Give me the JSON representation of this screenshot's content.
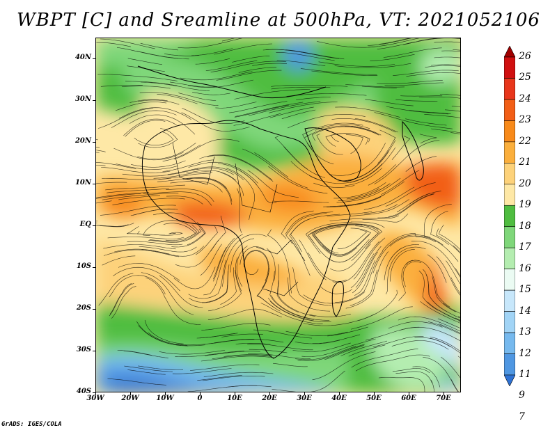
{
  "title": "WBPT [C] and Sreamline at 500hPa, VT: 2021052106",
  "footer": "GrADS: IGES/COLA",
  "map": {
    "lat_range": [
      -40,
      45
    ],
    "lon_range": [
      -30,
      75
    ],
    "lat_labels": [
      "40N",
      "30N",
      "20N",
      "10N",
      "EQ",
      "10S",
      "20S",
      "30S",
      "40S"
    ],
    "lat_values": [
      40,
      30,
      20,
      10,
      0,
      -10,
      -20,
      -30,
      -40
    ],
    "lon_labels": [
      "30W",
      "20W",
      "10W",
      "0",
      "10E",
      "20E",
      "30E",
      "40E",
      "50E",
      "60E",
      "70E"
    ],
    "lon_values": [
      -30,
      -20,
      -10,
      0,
      10,
      20,
      30,
      40,
      50,
      60,
      70
    ]
  },
  "colorbar": {
    "labels": [
      "26",
      "25",
      "24",
      "23",
      "22",
      "21",
      "20",
      "19",
      "18",
      "17",
      "16",
      "15",
      "14",
      "13",
      "12",
      "11",
      "9",
      "7"
    ],
    "colors": [
      "#a10000",
      "#d01010",
      "#e8361b",
      "#f25e16",
      "#f88a1a",
      "#fbaf3c",
      "#fdd27a",
      "#fee8a6",
      "#4fbd40",
      "#7fd77a",
      "#b4edb0",
      "#ebfbf3",
      "#c7e7fb",
      "#a1d4f6",
      "#76b9ee",
      "#4f97e2",
      "#2e72d4"
    ]
  }
}
